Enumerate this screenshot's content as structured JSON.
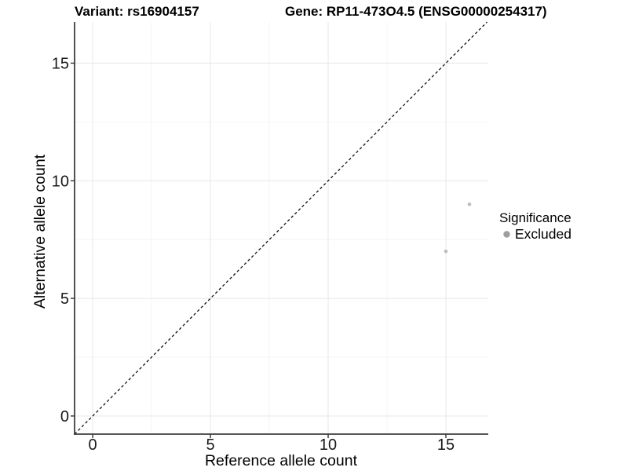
{
  "chart_data": {
    "type": "scatter",
    "titles": {
      "left": "Variant: rs16904157",
      "right": "Gene: RP11-473O4.5 (ENSG00000254317)"
    },
    "xlabel": "Reference allele count",
    "ylabel": "Alternative allele count",
    "xlim": [
      -0.77,
      16.8
    ],
    "ylim": [
      -0.77,
      16.75
    ],
    "xticks": [
      0,
      5,
      10,
      15
    ],
    "yticks": [
      0,
      5,
      10,
      15
    ],
    "grid": {
      "major": true,
      "minor": true,
      "major_color": "#e9e9e9",
      "minor_color": "#f4f4f4"
    },
    "identity_line": {
      "note": "y = x",
      "style": "dashed",
      "color": "#111111"
    },
    "series": [
      {
        "name": "Excluded",
        "color": "#bdbdbd",
        "points": [
          [
            15,
            7
          ],
          [
            16,
            9
          ]
        ]
      }
    ],
    "legend": {
      "title": "Significance",
      "position": "right",
      "entries": [
        {
          "label": "Excluded",
          "color": "#9e9e9e"
        }
      ]
    },
    "axis_color": "#3f3f3f",
    "tick_color": "#333333"
  }
}
